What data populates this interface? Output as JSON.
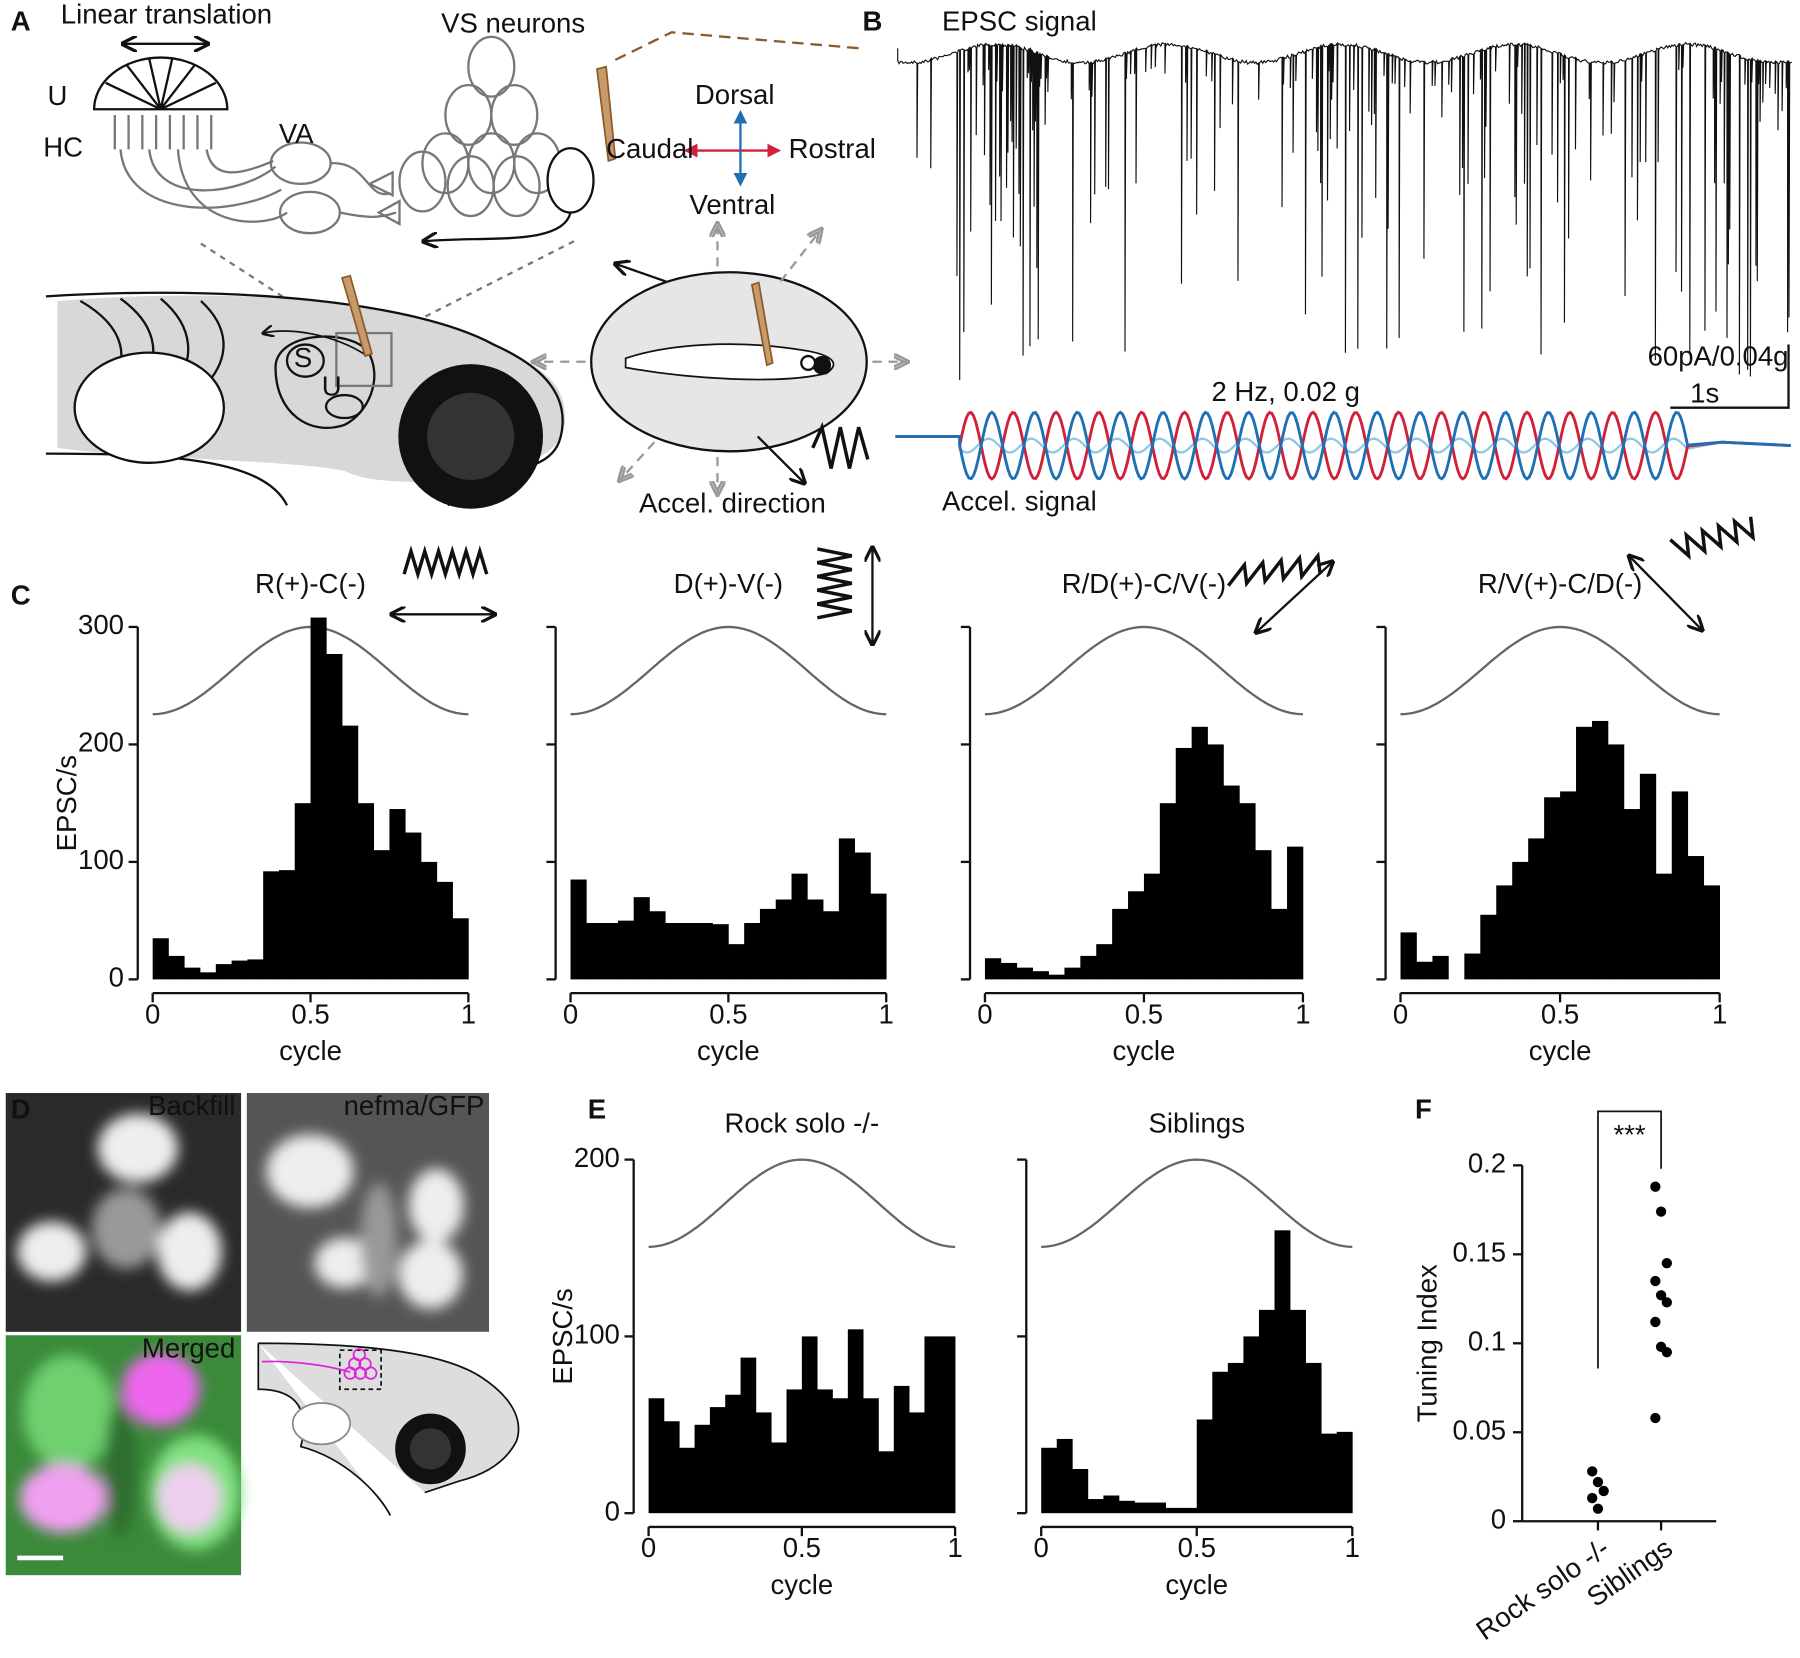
{
  "figure": {
    "panel_labels": [
      "A",
      "B",
      "C",
      "D",
      "E",
      "F"
    ],
    "A": {
      "title": "Linear translation",
      "vs_neurons": "VS neurons",
      "u": "U",
      "hc": "HC",
      "va": "VA",
      "dorsal": "Dorsal",
      "caudal": "Caudal",
      "rostral": "Rostral",
      "ventral": "Ventral",
      "s": "S",
      "u_small": "U",
      "accel_direction": "Accel. direction"
    },
    "B": {
      "epsc": "EPSC signal",
      "scale_y": "60pA/0.04g",
      "scale_x": "1s",
      "stimulus": "2 Hz, 0.02 g",
      "accel": "Accel. signal"
    },
    "D": {
      "backfill": "Backfill",
      "gfp": "nefma/GFP",
      "merged": "Merged"
    }
  },
  "chart_data": [
    {
      "type": "histogram",
      "title": "R(+)-C(-)",
      "y_label": "EPSC/s",
      "x_label": "cycle",
      "color": "#000000",
      "bins": [
        0,
        0.05,
        0.1,
        0.15,
        0.2,
        0.25,
        0.3,
        0.35,
        0.4,
        0.45,
        0.5,
        0.55,
        0.6,
        0.65,
        0.7,
        0.75,
        0.8,
        0.85,
        0.9,
        0.95,
        1
      ],
      "values": [
        35,
        20,
        10,
        6,
        13,
        16,
        17,
        92,
        93,
        150,
        308,
        277,
        216,
        150,
        110,
        145,
        125,
        100,
        83,
        52
      ],
      "xlim": [
        0,
        1
      ],
      "xticks": [
        0,
        0.5,
        1
      ],
      "ylim": [
        0,
        300
      ],
      "yticks": [
        0,
        100,
        200,
        300
      ],
      "show_ytick_labels": true
    },
    {
      "type": "histogram",
      "title": "D(+)-V(-)",
      "x_label": "cycle",
      "color": "#000000",
      "bins": [
        0,
        0.05,
        0.1,
        0.15,
        0.2,
        0.25,
        0.3,
        0.35,
        0.4,
        0.45,
        0.5,
        0.55,
        0.6,
        0.65,
        0.7,
        0.75,
        0.8,
        0.85,
        0.9,
        0.95,
        1
      ],
      "values": [
        85,
        48,
        48,
        50,
        70,
        58,
        48,
        48,
        48,
        47,
        30,
        48,
        60,
        68,
        90,
        68,
        58,
        120,
        108,
        73
      ],
      "xlim": [
        0,
        1
      ],
      "xticks": [
        0,
        0.5,
        1
      ],
      "ylim": [
        0,
        300
      ],
      "yticks": [
        0,
        100,
        200,
        300
      ],
      "show_ytick_labels": false
    },
    {
      "type": "histogram",
      "title": "R/D(+)-C/V(-)",
      "x_label": "cycle",
      "color": "#000000",
      "bins": [
        0,
        0.05,
        0.1,
        0.15,
        0.2,
        0.25,
        0.3,
        0.35,
        0.4,
        0.45,
        0.5,
        0.55,
        0.6,
        0.65,
        0.7,
        0.75,
        0.8,
        0.85,
        0.9,
        0.95,
        1
      ],
      "values": [
        18,
        14,
        10,
        7,
        4,
        10,
        20,
        30,
        60,
        75,
        90,
        150,
        197,
        215,
        200,
        165,
        150,
        110,
        60,
        113
      ],
      "xlim": [
        0,
        1
      ],
      "xticks": [
        0,
        0.5,
        1
      ],
      "ylim": [
        0,
        300
      ],
      "yticks": [
        0,
        100,
        200,
        300
      ],
      "show_ytick_labels": false
    },
    {
      "type": "histogram",
      "title": "R/V(+)-C/D(-)",
      "x_label": "cycle",
      "color": "#000000",
      "bins": [
        0,
        0.05,
        0.1,
        0.15,
        0.2,
        0.25,
        0.3,
        0.35,
        0.4,
        0.45,
        0.5,
        0.55,
        0.6,
        0.65,
        0.7,
        0.75,
        0.8,
        0.85,
        0.9,
        0.95,
        1
      ],
      "values": [
        40,
        15,
        20,
        0,
        22,
        55,
        80,
        100,
        120,
        155,
        160,
        215,
        220,
        200,
        145,
        175,
        90,
        160,
        105,
        80
      ],
      "xlim": [
        0,
        1
      ],
      "xticks": [
        0,
        0.5,
        1
      ],
      "ylim": [
        0,
        300
      ],
      "yticks": [
        0,
        100,
        200,
        300
      ],
      "show_ytick_labels": false
    },
    {
      "type": "histogram",
      "title": "Rock solo -/-",
      "y_label": "EPSC/s",
      "x_label": "cycle",
      "color": "#000000",
      "bins": [
        0,
        0.05,
        0.1,
        0.15,
        0.2,
        0.25,
        0.3,
        0.35,
        0.4,
        0.45,
        0.5,
        0.55,
        0.6,
        0.65,
        0.7,
        0.75,
        0.8,
        0.85,
        0.9,
        0.95,
        1
      ],
      "values": [
        65,
        52,
        37,
        50,
        60,
        67,
        88,
        57,
        40,
        70,
        100,
        70,
        65,
        104,
        65,
        35,
        72,
        57,
        100,
        100
      ],
      "xlim": [
        0,
        1
      ],
      "xticks": [
        0,
        0.5,
        1
      ],
      "ylim": [
        0,
        200
      ],
      "yticks": [
        0,
        100,
        200
      ],
      "show_ytick_labels": true
    },
    {
      "type": "histogram",
      "title": "Siblings",
      "x_label": "cycle",
      "color": "#000000",
      "bins": [
        0,
        0.05,
        0.1,
        0.15,
        0.2,
        0.25,
        0.3,
        0.35,
        0.4,
        0.45,
        0.5,
        0.55,
        0.6,
        0.65,
        0.7,
        0.75,
        0.8,
        0.85,
        0.9,
        0.95,
        1
      ],
      "values": [
        37,
        42,
        25,
        8,
        10,
        7,
        6,
        6,
        3,
        3,
        53,
        80,
        85,
        100,
        115,
        160,
        115,
        85,
        45,
        46
      ],
      "xlim": [
        0,
        1
      ],
      "xticks": [
        0,
        0.5,
        1
      ],
      "ylim": [
        0,
        200
      ],
      "yticks": [
        0,
        100,
        200
      ],
      "show_ytick_labels": false
    },
    {
      "type": "scatter",
      "y_label": "Tuning Index",
      "annotation": "***",
      "color": "#000000",
      "categories": [
        "Rock solo -/-",
        "Siblings"
      ],
      "values": [
        [
          0.028,
          0.022,
          0.017,
          0.013,
          0.007
        ],
        [
          0.188,
          0.174,
          0.145,
          0.135,
          0.127,
          0.123,
          0.112,
          0.098,
          0.095,
          0.058
        ]
      ],
      "ylim": [
        0,
        0.2
      ],
      "yticks": [
        0,
        0.05,
        0.1,
        0.15,
        0.2
      ]
    }
  ]
}
